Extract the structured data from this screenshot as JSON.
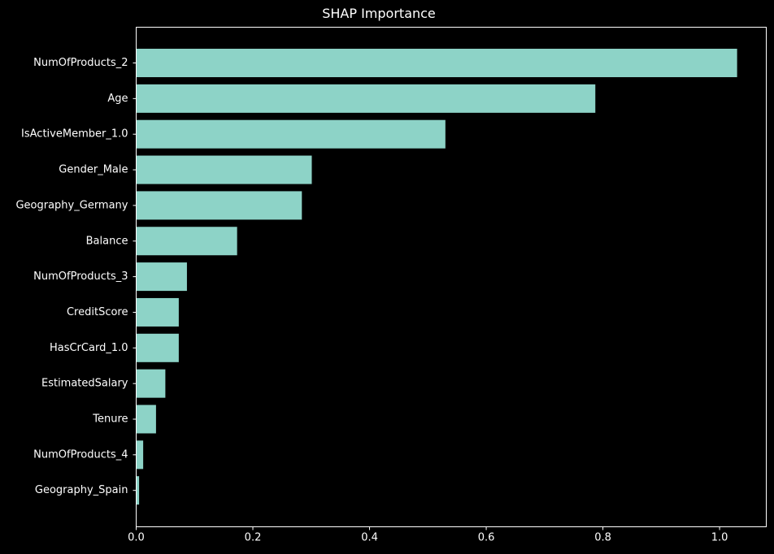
{
  "chart_data": {
    "type": "bar",
    "orientation": "horizontal",
    "title": "SHAP Importance",
    "xlabel": "",
    "ylabel": "",
    "categories": [
      "NumOfProducts_2",
      "Age",
      "IsActiveMember_1.0",
      "Gender_Male",
      "Geography_Germany",
      "Balance",
      "NumOfProducts_3",
      "CreditScore",
      "HasCrCard_1.0",
      "EstimatedSalary",
      "Tenure",
      "NumOfProducts_4",
      "Geography_Spain"
    ],
    "values": [
      1.03,
      0.787,
      0.53,
      0.301,
      0.284,
      0.173,
      0.087,
      0.073,
      0.073,
      0.05,
      0.034,
      0.012,
      0.005
    ],
    "xlim": [
      0,
      1.08
    ],
    "xticks": [
      0.0,
      0.2,
      0.4,
      0.6,
      0.8,
      1.0
    ],
    "xtick_labels": [
      "0.0",
      "0.2",
      "0.4",
      "0.6",
      "0.8",
      "1.0"
    ],
    "grid": false,
    "bar_color": "#8dd3c7",
    "background_color": "#000000",
    "text_color": "#ffffff"
  }
}
